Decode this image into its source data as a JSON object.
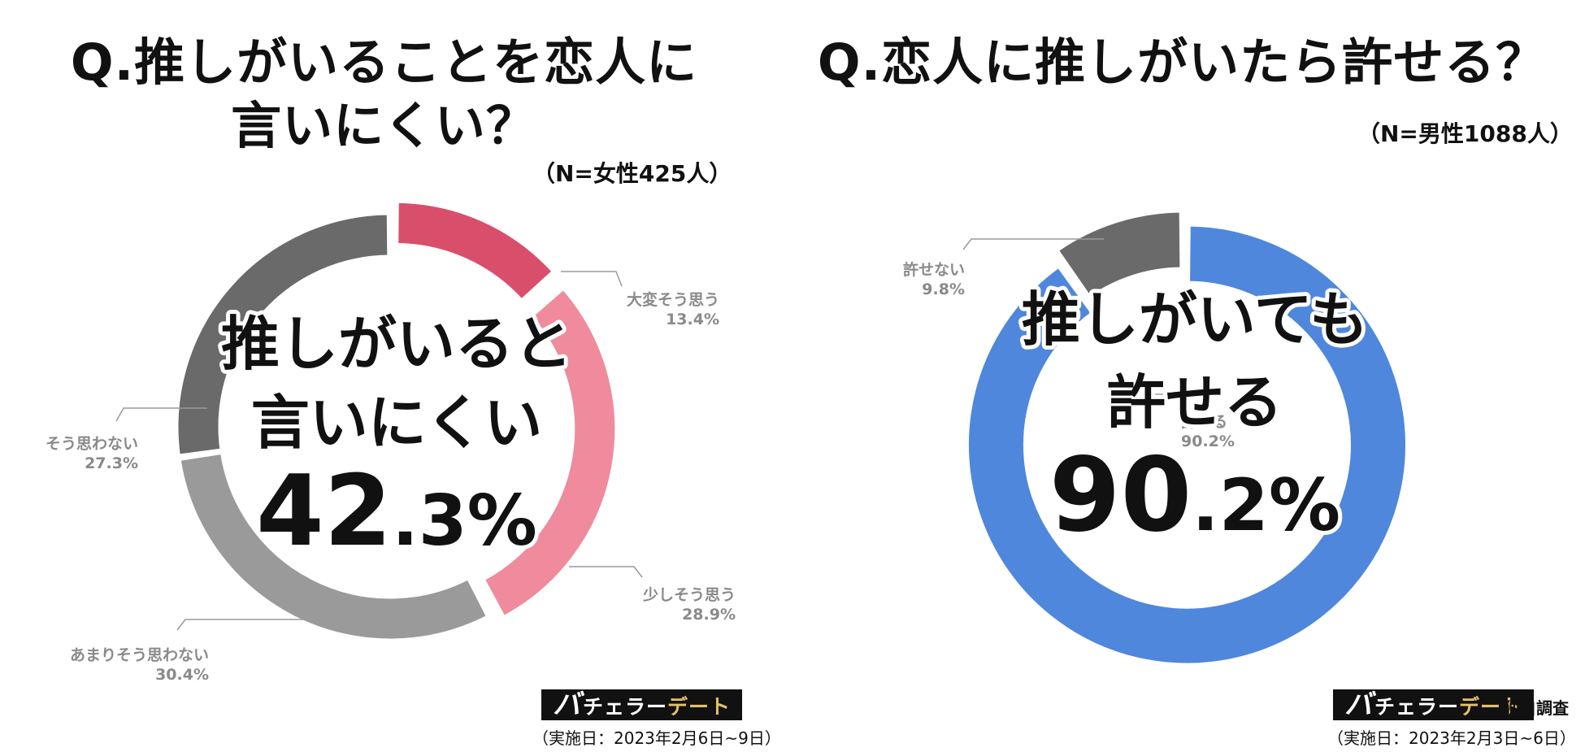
{
  "left": {
    "title_line1": "Q.推しがいることを恋人に",
    "title_line2": "言いにくい？",
    "sample": "（N=女性425人）",
    "center_line1": "推しがいると",
    "center_line2": "言いにくい",
    "center_value_int": "42",
    "center_value_dec": ".3%",
    "brand": {
      "big": "バ",
      "white": "チェラー",
      "gold": "デート"
    },
    "date_note": "（実施日：2023年2月6日~9日）"
  },
  "right": {
    "title": "Q.恋人に推しがいたら許せる？",
    "sample": "（N=男性1088人）",
    "center_line1": "推しがいても",
    "center_line2": "許せる",
    "center_value_int": "90",
    "center_value_dec": ".2%",
    "brand": {
      "big": "バ",
      "white": "チェラー",
      "gold": "デート"
    },
    "survey_tag": "独自調査",
    "date_note": "（実施日：2023年2月3日~6日）"
  },
  "chart_data": [
    {
      "type": "pie",
      "title": "Q.推しがいることを恋人に言いにくい？",
      "categories": [
        "大変そう思う",
        "少しそう思う",
        "あまりそう思わない",
        "そう思わない"
      ],
      "values": [
        13.4,
        28.9,
        30.4,
        27.3
      ],
      "value_labels": [
        "13.4%",
        "28.9%",
        "30.4%",
        "27.3%"
      ],
      "colors": [
        "#d94f6b",
        "#ef8b9c",
        "#9a9a9a",
        "#6a6a6a"
      ],
      "exploded": [
        true,
        true,
        false,
        false
      ]
    },
    {
      "type": "pie",
      "title": "Q.恋人に推しがいたら許せる？",
      "categories": [
        "許せる",
        "許せない"
      ],
      "values": [
        90.2,
        9.8
      ],
      "value_labels": [
        "90.2%",
        "9.8%"
      ],
      "colors": [
        "#4f87dc",
        "#6a6a6a"
      ],
      "exploded": [
        true,
        false
      ]
    }
  ]
}
